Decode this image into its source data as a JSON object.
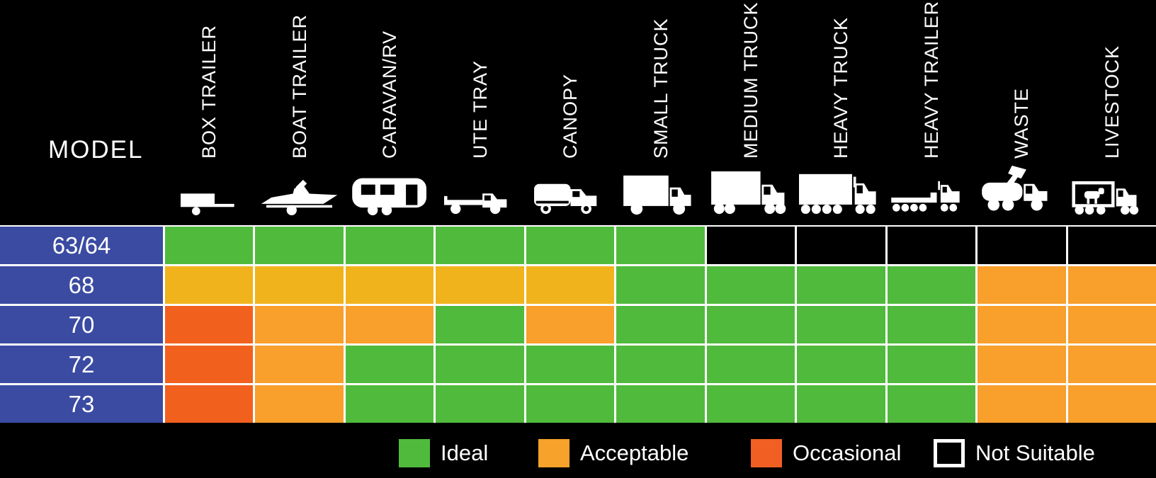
{
  "model_label": "MODEL",
  "colors": {
    "background": "#000000",
    "row_label_blue": "#3B4BA2",
    "grid_line": "#FFFFFF",
    "cell": {
      "I": "#50BA3D",
      "A": "#F89F2C",
      "AG": "#F1B31B",
      "O": "#F2601E",
      "N": "#000000"
    }
  },
  "columns": [
    {
      "label": "BOX TRAILER",
      "icon": "box-trailer-icon"
    },
    {
      "label": "BOAT TRAILER",
      "icon": "boat-trailer-icon"
    },
    {
      "label": "CARAVAN/RV",
      "icon": "caravan-rv-icon"
    },
    {
      "label": "UTE TRAY",
      "icon": "ute-tray-icon"
    },
    {
      "label": "CANOPY",
      "icon": "canopy-icon"
    },
    {
      "label": "SMALL TRUCK",
      "icon": "small-truck-icon"
    },
    {
      "label": "MEDIUM TRUCK",
      "icon": "medium-truck-icon"
    },
    {
      "label": "HEAVY TRUCK",
      "icon": "heavy-truck-icon"
    },
    {
      "label": "HEAVY TRAILER",
      "icon": "heavy-trailer-icon"
    },
    {
      "label": "WASTE",
      "icon": "waste-truck-icon"
    },
    {
      "label": "LIVESTOCK",
      "icon": "livestock-truck-icon"
    }
  ],
  "rows": [
    {
      "model": "63/64",
      "cells": [
        "I",
        "I",
        "I",
        "I",
        "I",
        "I",
        "N",
        "N",
        "N",
        "N",
        "N"
      ]
    },
    {
      "model": "68",
      "cells": [
        "AG",
        "AG",
        "AG",
        "AG",
        "AG",
        "I",
        "I",
        "I",
        "I",
        "A",
        "A"
      ]
    },
    {
      "model": "70",
      "cells": [
        "O",
        "A",
        "A",
        "I",
        "A",
        "I",
        "I",
        "I",
        "I",
        "A",
        "A"
      ]
    },
    {
      "model": "72",
      "cells": [
        "O",
        "A",
        "I",
        "I",
        "I",
        "I",
        "I",
        "I",
        "I",
        "A",
        "A"
      ]
    },
    {
      "model": "73",
      "cells": [
        "O",
        "A",
        "I",
        "I",
        "I",
        "I",
        "I",
        "I",
        "I",
        "A",
        "A"
      ]
    }
  ],
  "legend": [
    {
      "key": "ideal",
      "label": "Ideal",
      "color": "#50BA3D"
    },
    {
      "key": "acceptable",
      "label": "Acceptable",
      "color": "#F7A22B"
    },
    {
      "key": "occasional",
      "label": "Occasional",
      "color": "#F15F22"
    },
    {
      "key": "not-suitable",
      "label": "Not Suitable",
      "color": "#000000",
      "border": "#FFFFFF"
    }
  ],
  "chart_data": {
    "type": "heatmap",
    "title": "",
    "x_categories": [
      "BOX TRAILER",
      "BOAT TRAILER",
      "CARAVAN/RV",
      "UTE TRAY",
      "CANOPY",
      "SMALL TRUCK",
      "MEDIUM TRUCK",
      "HEAVY TRUCK",
      "HEAVY TRAILER",
      "WASTE",
      "LIVESTOCK"
    ],
    "y_categories": [
      "63/64",
      "68",
      "70",
      "72",
      "73"
    ],
    "values": [
      [
        "Ideal",
        "Ideal",
        "Ideal",
        "Ideal",
        "Ideal",
        "Ideal",
        "Not Suitable",
        "Not Suitable",
        "Not Suitable",
        "Not Suitable",
        "Not Suitable"
      ],
      [
        "Acceptable",
        "Acceptable",
        "Acceptable",
        "Acceptable",
        "Acceptable",
        "Ideal",
        "Ideal",
        "Ideal",
        "Ideal",
        "Acceptable",
        "Acceptable"
      ],
      [
        "Occasional",
        "Acceptable",
        "Acceptable",
        "Ideal",
        "Acceptable",
        "Ideal",
        "Ideal",
        "Ideal",
        "Ideal",
        "Acceptable",
        "Acceptable"
      ],
      [
        "Occasional",
        "Acceptable",
        "Ideal",
        "Ideal",
        "Ideal",
        "Ideal",
        "Ideal",
        "Ideal",
        "Ideal",
        "Acceptable",
        "Acceptable"
      ],
      [
        "Occasional",
        "Acceptable",
        "Ideal",
        "Ideal",
        "Ideal",
        "Ideal",
        "Ideal",
        "Ideal",
        "Ideal",
        "Acceptable",
        "Acceptable"
      ]
    ],
    "legend": [
      "Ideal",
      "Acceptable",
      "Occasional",
      "Not Suitable"
    ],
    "legend_position": "bottom",
    "grid": true
  }
}
